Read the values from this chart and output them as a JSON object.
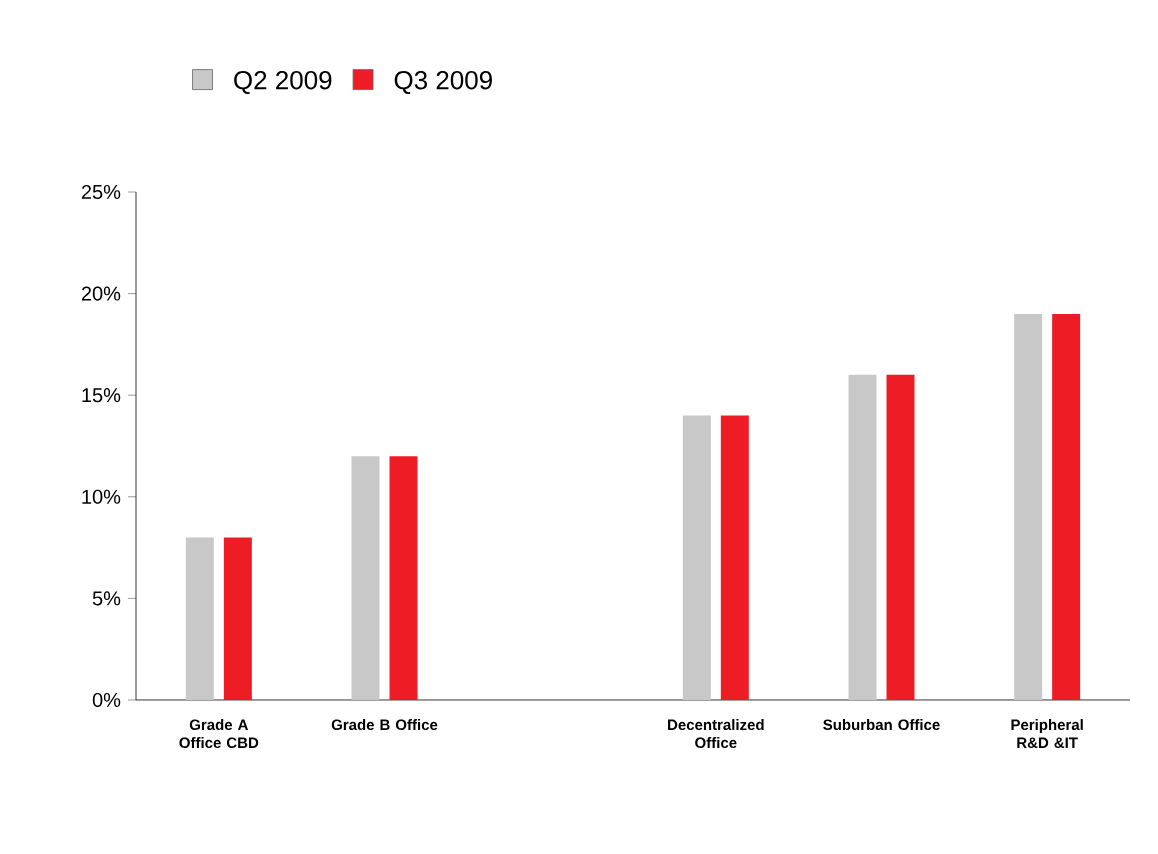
{
  "chart_data": {
    "type": "bar",
    "categories": [
      "Grade A Office CBD",
      "Grade B Office",
      null,
      "Decentralized Office",
      "Suburban Office",
      "Peripheral R&D &IT"
    ],
    "series": [
      {
        "name": "Q2 2009",
        "color": "#c8c8c8",
        "values": [
          8,
          12,
          null,
          14,
          16,
          19
        ]
      },
      {
        "name": "Q3 2009",
        "color": "#ee1c25",
        "values": [
          8,
          12,
          null,
          14,
          16,
          19
        ]
      }
    ],
    "ylim": [
      0,
      25
    ],
    "yticks": [
      {
        "value": 0,
        "label": "0%"
      },
      {
        "value": 5,
        "label": "5%"
      },
      {
        "value": 10,
        "label": "10%"
      },
      {
        "value": 15,
        "label": "15%"
      },
      {
        "value": 20,
        "label": "20%"
      },
      {
        "value": 25,
        "label": "25%"
      }
    ],
    "grid": false,
    "legend": "top left"
  }
}
